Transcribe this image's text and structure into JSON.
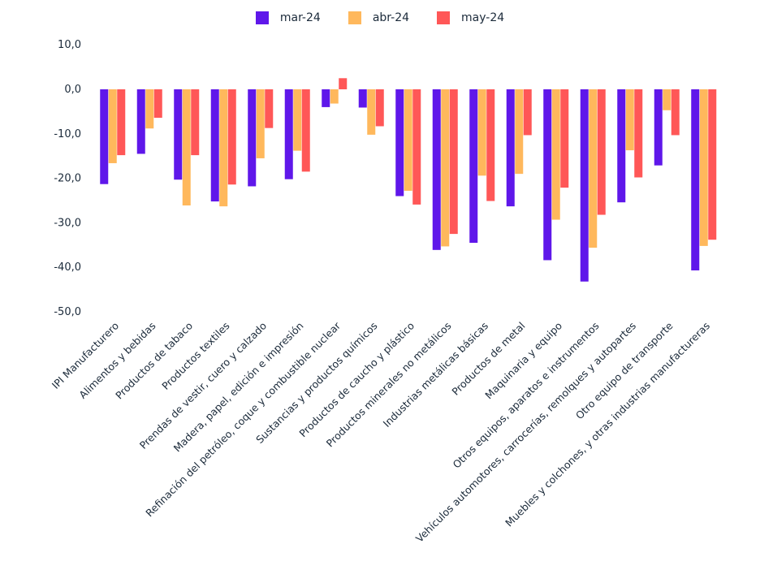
{
  "chart_data": {
    "type": "bar",
    "title": "",
    "xlabel": "",
    "ylabel": "",
    "ylim": [
      -50,
      10
    ],
    "yticks": [
      10,
      0,
      -10,
      -20,
      -30,
      -40,
      -50
    ],
    "ytick_labels": [
      "10,0",
      "0,0",
      "-10,0",
      "-20,0",
      "-30,0",
      "-40,0",
      "-50,0"
    ],
    "grid": false,
    "legend_position": "top-center",
    "categories": [
      "IPI Manufacturero",
      "Alimentos y bebidas",
      "Productos de tabaco",
      "Productos textiles",
      "Prendas de vestir, cuero y calzado",
      "Madera, papel, edición e impresión",
      "Refinación del petróleo, coque y combustible nuclear",
      "Sustancias y productos químicos",
      "Productos de caucho y plástico",
      "Productos minerales no metálicos",
      "Industrias metálicas básicas",
      "Productos de metal",
      "Maquinaria y equipo",
      "Otros equipos, aparatos e instrumentos",
      "Vehículos automotores, carrocerías, remolques y autopartes",
      "Otro equipo de transporte",
      "Muebles y colchones, y otras industrias manufactureras"
    ],
    "series": [
      {
        "name": "mar-24",
        "color": "#5f17ea",
        "values": [
          -21.3,
          -14.5,
          -20.3,
          -25.2,
          -21.8,
          -20.2,
          -4.0,
          -4.1,
          -24.0,
          -36.1,
          -34.5,
          -26.3,
          -38.4,
          -43.2,
          -25.4,
          -17.1,
          -40.7
        ]
      },
      {
        "name": "abr-24",
        "color": "#ffb85c",
        "values": [
          -16.6,
          -8.8,
          -26.1,
          -26.3,
          -15.5,
          -13.8,
          -3.2,
          -10.2,
          -22.8,
          -35.3,
          -19.4,
          -19.0,
          -29.3,
          -35.6,
          -13.7,
          -4.7,
          -35.2
        ]
      },
      {
        "name": "may-24",
        "color": "#ff5757",
        "values": [
          -14.8,
          -6.4,
          -14.8,
          -21.4,
          -8.7,
          -18.5,
          2.5,
          -8.3,
          -25.9,
          -32.5,
          -25.1,
          -10.3,
          -22.1,
          -28.2,
          -19.8,
          -10.3,
          -33.8
        ]
      }
    ]
  }
}
